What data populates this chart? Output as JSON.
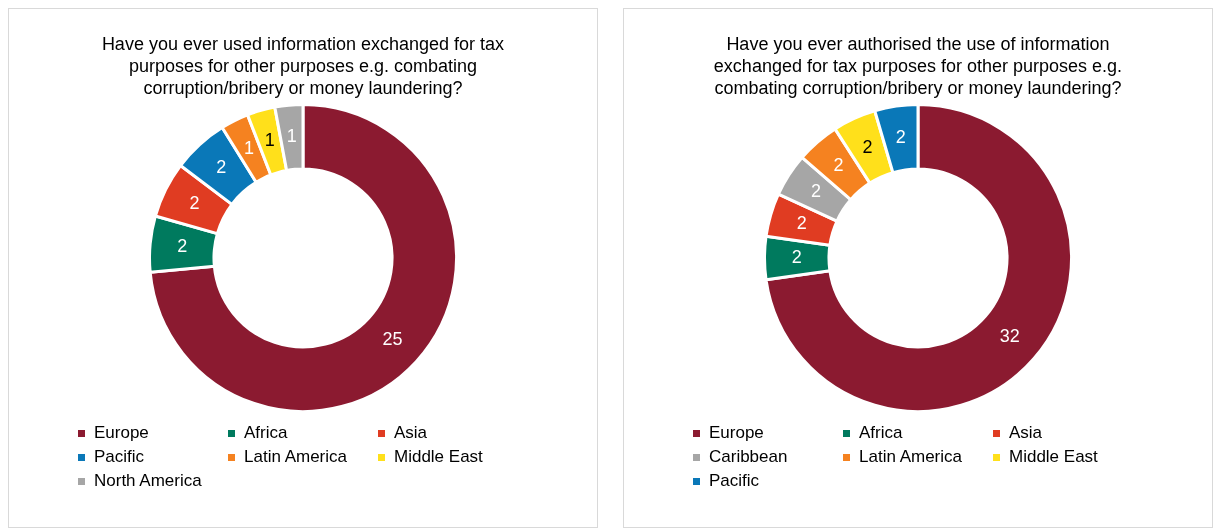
{
  "chart_data": [
    {
      "type": "donut",
      "title": "Have you ever used information exchanged for tax purposes for other purposes e.g. combating corruption/bribery or money laundering?",
      "categories": [
        "Europe",
        "Africa",
        "Asia",
        "Pacific",
        "Latin America",
        "Middle East",
        "North America"
      ],
      "values": [
        25,
        2,
        2,
        2,
        1,
        1,
        1
      ],
      "colors": [
        "#8b1a30",
        "#007a5e",
        "#e03c22",
        "#0a78b8",
        "#f58220",
        "#ffe01b",
        "#a6a6a6"
      ],
      "data_labels": true,
      "legend": "bottom"
    },
    {
      "type": "donut",
      "title": "Have you ever authorised the use of information exchanged for tax purposes for other purposes e.g. combating corruption/bribery or money laundering?",
      "categories": [
        "Europe",
        "Africa",
        "Asia",
        "Caribbean",
        "Latin America",
        "Middle East",
        "Pacific"
      ],
      "values": [
        32,
        2,
        2,
        2,
        2,
        2,
        2
      ],
      "colors": [
        "#8b1a30",
        "#007a5e",
        "#e03c22",
        "#a6a6a6",
        "#f58220",
        "#ffe01b",
        "#0a78b8"
      ],
      "data_labels": true,
      "legend": "bottom"
    }
  ]
}
